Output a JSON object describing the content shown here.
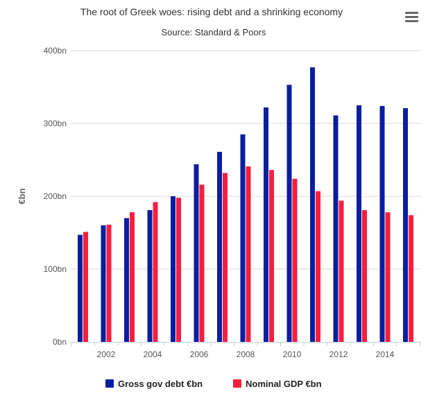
{
  "chart_data": {
    "type": "bar",
    "title": "The root of Greek woes: rising debt and a shrinking economy",
    "subtitle": "Source: Standard & Poors",
    "ylabel": "€bn",
    "ylim": [
      0,
      400
    ],
    "yticks": [
      {
        "value": 0,
        "label": "0bn"
      },
      {
        "value": 100,
        "label": "100bn"
      },
      {
        "value": 200,
        "label": "200bn"
      },
      {
        "value": 300,
        "label": "300bn"
      },
      {
        "value": 400,
        "label": "400bn"
      }
    ],
    "categories": [
      "2001",
      "2002",
      "2003",
      "2004",
      "2005",
      "2006",
      "2007",
      "2008",
      "2009",
      "2010",
      "2011",
      "2012",
      "2013",
      "2014",
      "2015"
    ],
    "xtick_labels": [
      "2002",
      "2004",
      "2006",
      "2008",
      "2010",
      "2012",
      "2014"
    ],
    "grid": true,
    "legend_position": "bottom",
    "series": [
      {
        "name": "Gross gov debt €bn",
        "color": "#0a1ea0",
        "values": [
          147,
          160,
          170,
          181,
          200,
          244,
          261,
          285,
          322,
          353,
          377,
          311,
          325,
          324,
          321
        ]
      },
      {
        "name": "Nominal GDP €bn",
        "color": "#f5203e",
        "values": [
          151,
          161,
          178,
          192,
          198,
          216,
          232,
          241,
          236,
          224,
          207,
          194,
          181,
          178,
          174
        ]
      }
    ]
  },
  "toolbar": {
    "menu_icon": "hamburger-menu-icon"
  }
}
